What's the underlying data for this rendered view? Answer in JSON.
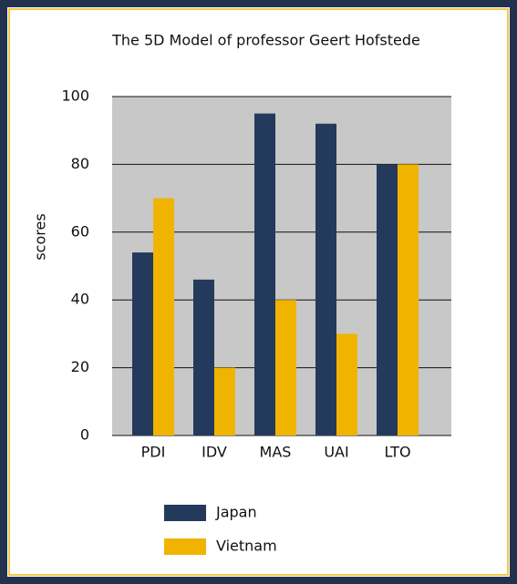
{
  "chart_data": {
    "type": "bar",
    "title": "The 5D Model of professor Geert Hofstede",
    "y_label": "scores",
    "categories": [
      "PDI",
      "IDV",
      "MAS",
      "UAI",
      "LTO"
    ],
    "series": [
      {
        "name": "Japan",
        "color": "#243a5c",
        "values": [
          54,
          46,
          95,
          92,
          80
        ]
      },
      {
        "name": "Vietnam",
        "color": "#f0b400",
        "values": [
          70,
          20,
          40,
          30,
          80
        ]
      }
    ],
    "ylim": [
      0,
      100
    ],
    "yticks": [
      0,
      20,
      40,
      60,
      80,
      100
    ],
    "grid": true
  }
}
